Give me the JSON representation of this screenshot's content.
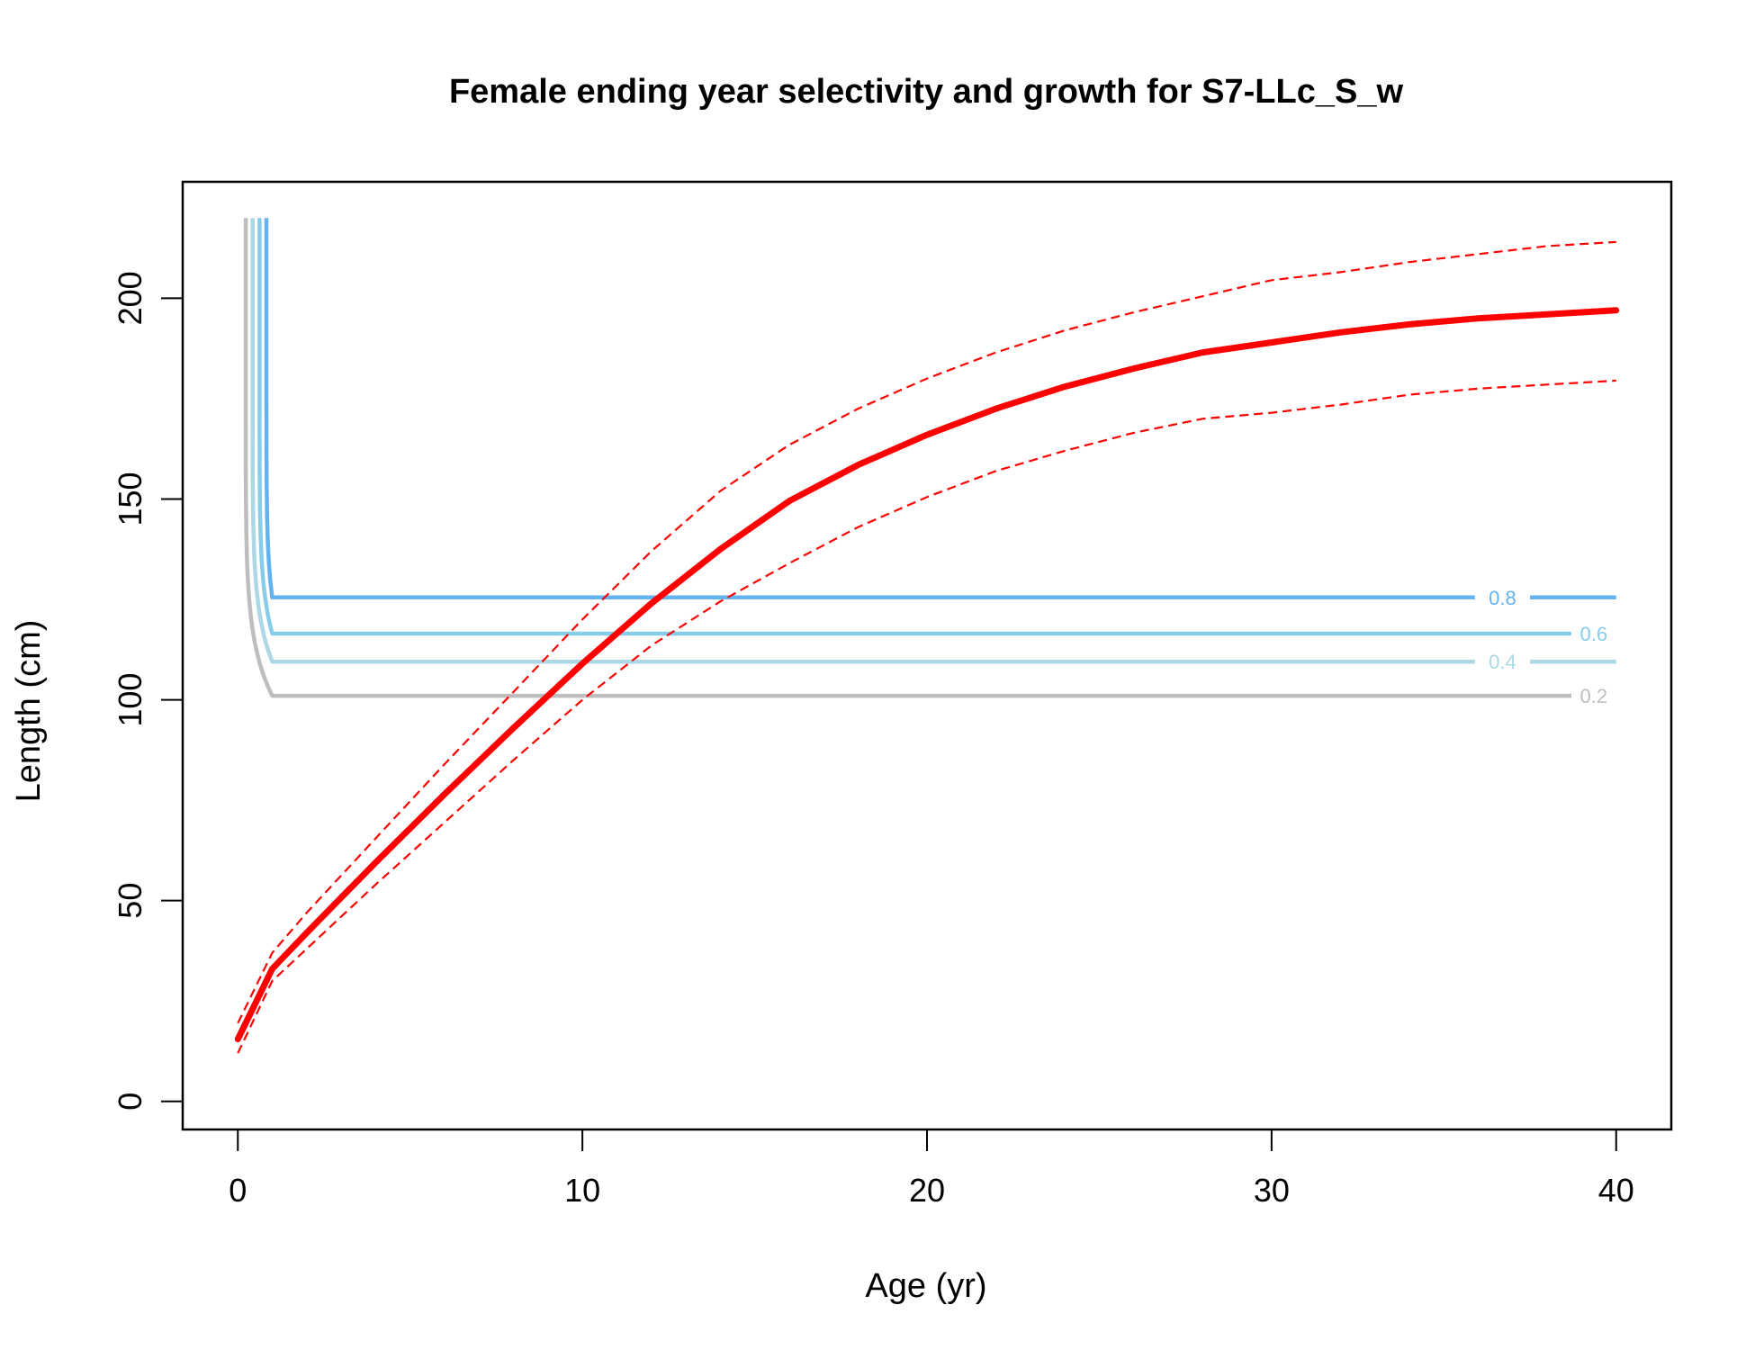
{
  "chart_data": {
    "type": "line",
    "title": "Female ending year selectivity and growth for S7-LLc_S_w",
    "xlabel": "Age (yr)",
    "ylabel": "Length (cm)",
    "xlim": [
      -1.6,
      41.6
    ],
    "ylim": [
      -7,
      229
    ],
    "x_ticks": [
      0,
      10,
      20,
      30,
      40
    ],
    "y_ticks": [
      0,
      50,
      100,
      150,
      200
    ],
    "grid": false,
    "colors": {
      "growth": "#ff0000",
      "contour_0.8": "#63b3f0",
      "contour_0.6": "#87cdea",
      "contour_0.4": "#acd8e6",
      "contour_0.2": "#bebebe",
      "axis": "#000000"
    },
    "growth": {
      "ages": [
        0,
        1,
        2,
        4,
        6,
        8,
        10,
        12,
        14,
        16,
        18,
        20,
        22,
        24,
        26,
        28,
        30,
        32,
        34,
        36,
        38,
        40
      ],
      "mean": [
        15.5,
        33,
        42,
        59.5,
        76.5,
        93,
        109,
        124,
        137.5,
        149.5,
        158.5,
        166,
        172.5,
        178,
        182.5,
        186.5,
        189,
        191.5,
        193.5,
        195,
        196,
        197
      ],
      "upper": [
        19.5,
        37,
        47,
        65.5,
        84,
        102,
        120,
        137,
        152,
        163.5,
        172.5,
        180,
        186.5,
        192,
        196.5,
        200.5,
        204.5,
        206.5,
        209,
        211,
        213,
        214
      ],
      "lower": [
        12,
        30,
        38,
        54,
        69.5,
        85,
        100,
        113.5,
        124.5,
        134,
        143,
        150.5,
        157,
        162,
        166.5,
        170,
        171.5,
        173.5,
        176,
        177.5,
        178.5,
        179.5
      ]
    },
    "selectivity_contours": [
      {
        "level": "0.8",
        "x_top": 0.83,
        "x_end": 40,
        "y_top": 220,
        "plateau": 125.5,
        "label_x": 36.7,
        "gap": [
          35.9,
          37.5
        ]
      },
      {
        "level": "0.6",
        "x_top": 0.63,
        "x_end": 38.7,
        "y_top": 220,
        "plateau": 116.5,
        "label_x": 39.35,
        "gap": null
      },
      {
        "level": "0.4",
        "x_top": 0.43,
        "x_end": 40,
        "y_top": 220,
        "plateau": 109.5,
        "label_x": 36.7,
        "gap": [
          35.9,
          37.5
        ]
      },
      {
        "level": "0.2",
        "x_top": 0.23,
        "x_end": 38.7,
        "y_top": 220,
        "plateau": 101,
        "label_x": 39.35,
        "gap": null
      }
    ]
  }
}
